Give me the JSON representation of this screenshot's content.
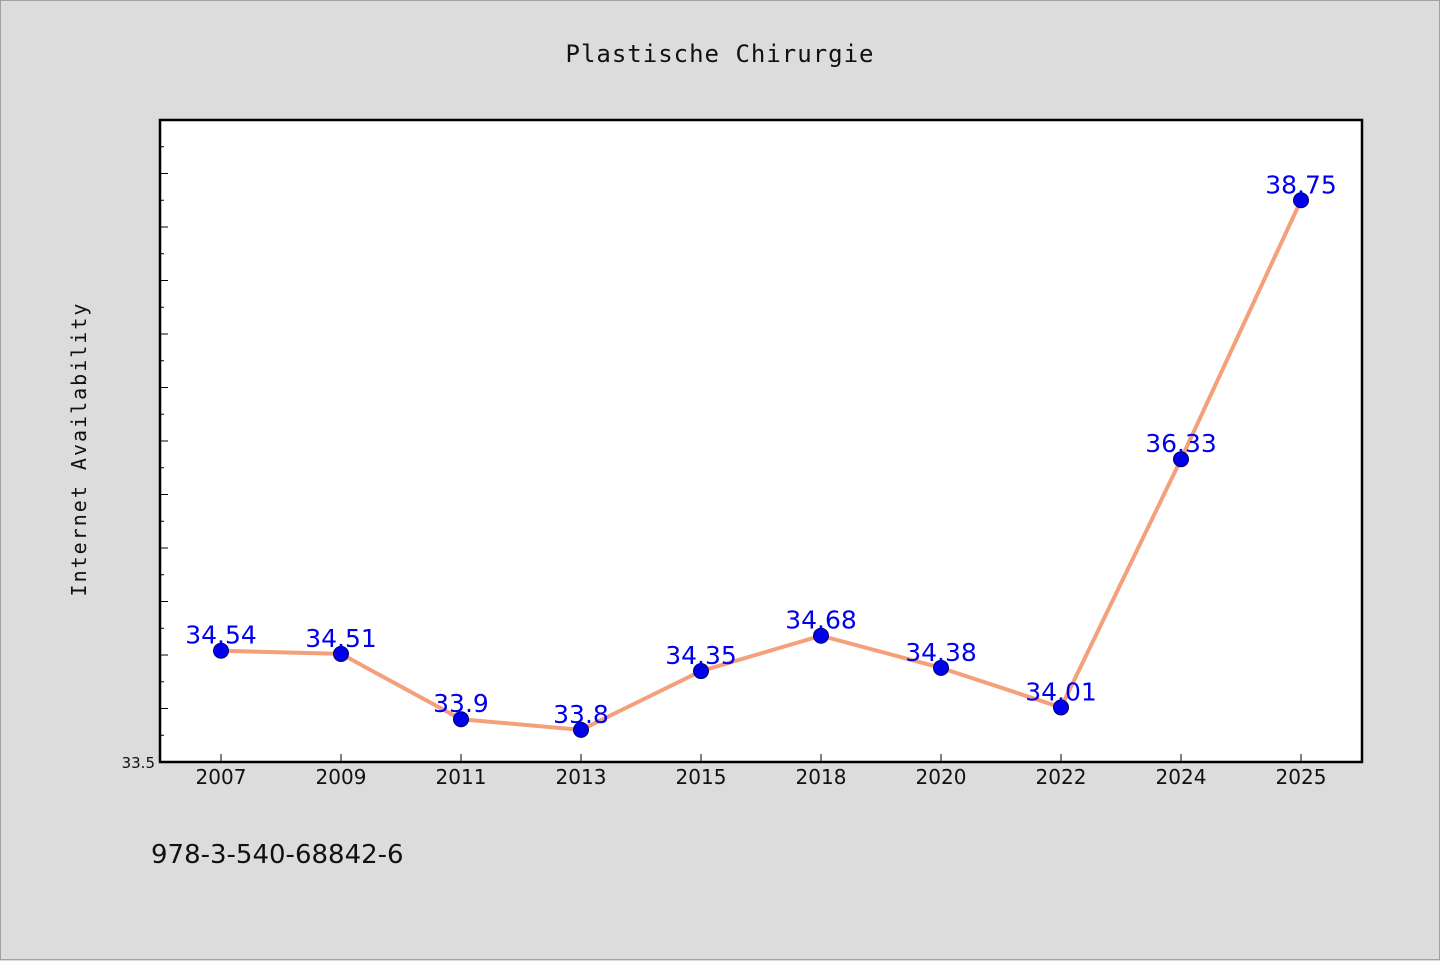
{
  "chart_data": {
    "type": "line",
    "title": "Plastische Chirurgie",
    "xlabel": "",
    "ylabel": "Internet Availability",
    "categories": [
      "2007",
      "2009",
      "2011",
      "2013",
      "2015",
      "2018",
      "2020",
      "2022",
      "2024",
      "2025"
    ],
    "series": [
      {
        "values": [
          34.54,
          34.51,
          33.9,
          33.8,
          34.35,
          34.68,
          34.38,
          34.01,
          36.33,
          38.75
        ],
        "labels": [
          "34.54",
          "34.51",
          "33.9",
          "33.8",
          "34.35",
          "34.68",
          "34.38",
          "34.01",
          "36.33",
          "38.75"
        ]
      }
    ],
    "ylim": [
      33.5,
      39.5
    ],
    "ytick_labels": [
      "33.5"
    ],
    "grid": false,
    "colors": {
      "line": "#f4a07a",
      "marker": "#0000ee",
      "label": "#0000ee",
      "plot_bg": "#ffffff",
      "figure_bg": "#dcdcdc"
    }
  },
  "footer": {
    "text": "978-3-540-68842-6"
  }
}
